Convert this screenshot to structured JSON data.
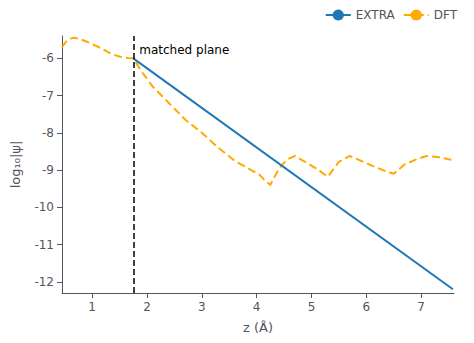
{
  "chart_data": {
    "type": "line",
    "xlabel": "z (Å)",
    "ylabel": "log₁₀|ψ|",
    "xlim": [
      0.45,
      7.6
    ],
    "ylim": [
      -12.3,
      -5.4
    ],
    "xticks": [
      1,
      2,
      3,
      4,
      5,
      6,
      7
    ],
    "yticks": [
      -12,
      -11,
      -10,
      -9,
      -8,
      -7,
      -6
    ],
    "grid": false,
    "legend": "upper right",
    "series": [
      {
        "name": "EXTRA",
        "color": "#1f77b4",
        "line_style": "solid",
        "x": [
          1.75,
          7.58
        ],
        "values": [
          -6.0,
          -12.2
        ]
      },
      {
        "name": "DFT",
        "color": "#ffaa00",
        "line_style": "dashed",
        "x": [
          0.45,
          0.55,
          0.65,
          0.75,
          0.85,
          0.95,
          1.05,
          1.15,
          1.25,
          1.35,
          1.45,
          1.55,
          1.65,
          1.75,
          1.9,
          2.1,
          2.4,
          2.7,
          3.0,
          3.3,
          3.6,
          3.9,
          4.05,
          4.15,
          4.25,
          4.4,
          4.55,
          4.7,
          4.85,
          5.0,
          5.15,
          5.3,
          5.5,
          5.7,
          5.9,
          6.1,
          6.3,
          6.5,
          6.7,
          6.9,
          7.1,
          7.3,
          7.55
        ],
        "values": [
          -5.7,
          -5.5,
          -5.45,
          -5.47,
          -5.52,
          -5.58,
          -5.65,
          -5.72,
          -5.8,
          -5.88,
          -5.93,
          -5.97,
          -5.99,
          -6.0,
          -6.35,
          -6.75,
          -7.2,
          -7.65,
          -8.0,
          -8.4,
          -8.75,
          -9.0,
          -9.12,
          -9.28,
          -9.4,
          -8.98,
          -8.72,
          -8.62,
          -8.75,
          -8.88,
          -9.02,
          -9.18,
          -8.78,
          -8.62,
          -8.75,
          -8.88,
          -9.0,
          -9.1,
          -8.85,
          -8.72,
          -8.62,
          -8.65,
          -8.72
        ]
      }
    ],
    "annotations": [
      {
        "text": "matched plane",
        "x": 1.75
      }
    ]
  }
}
